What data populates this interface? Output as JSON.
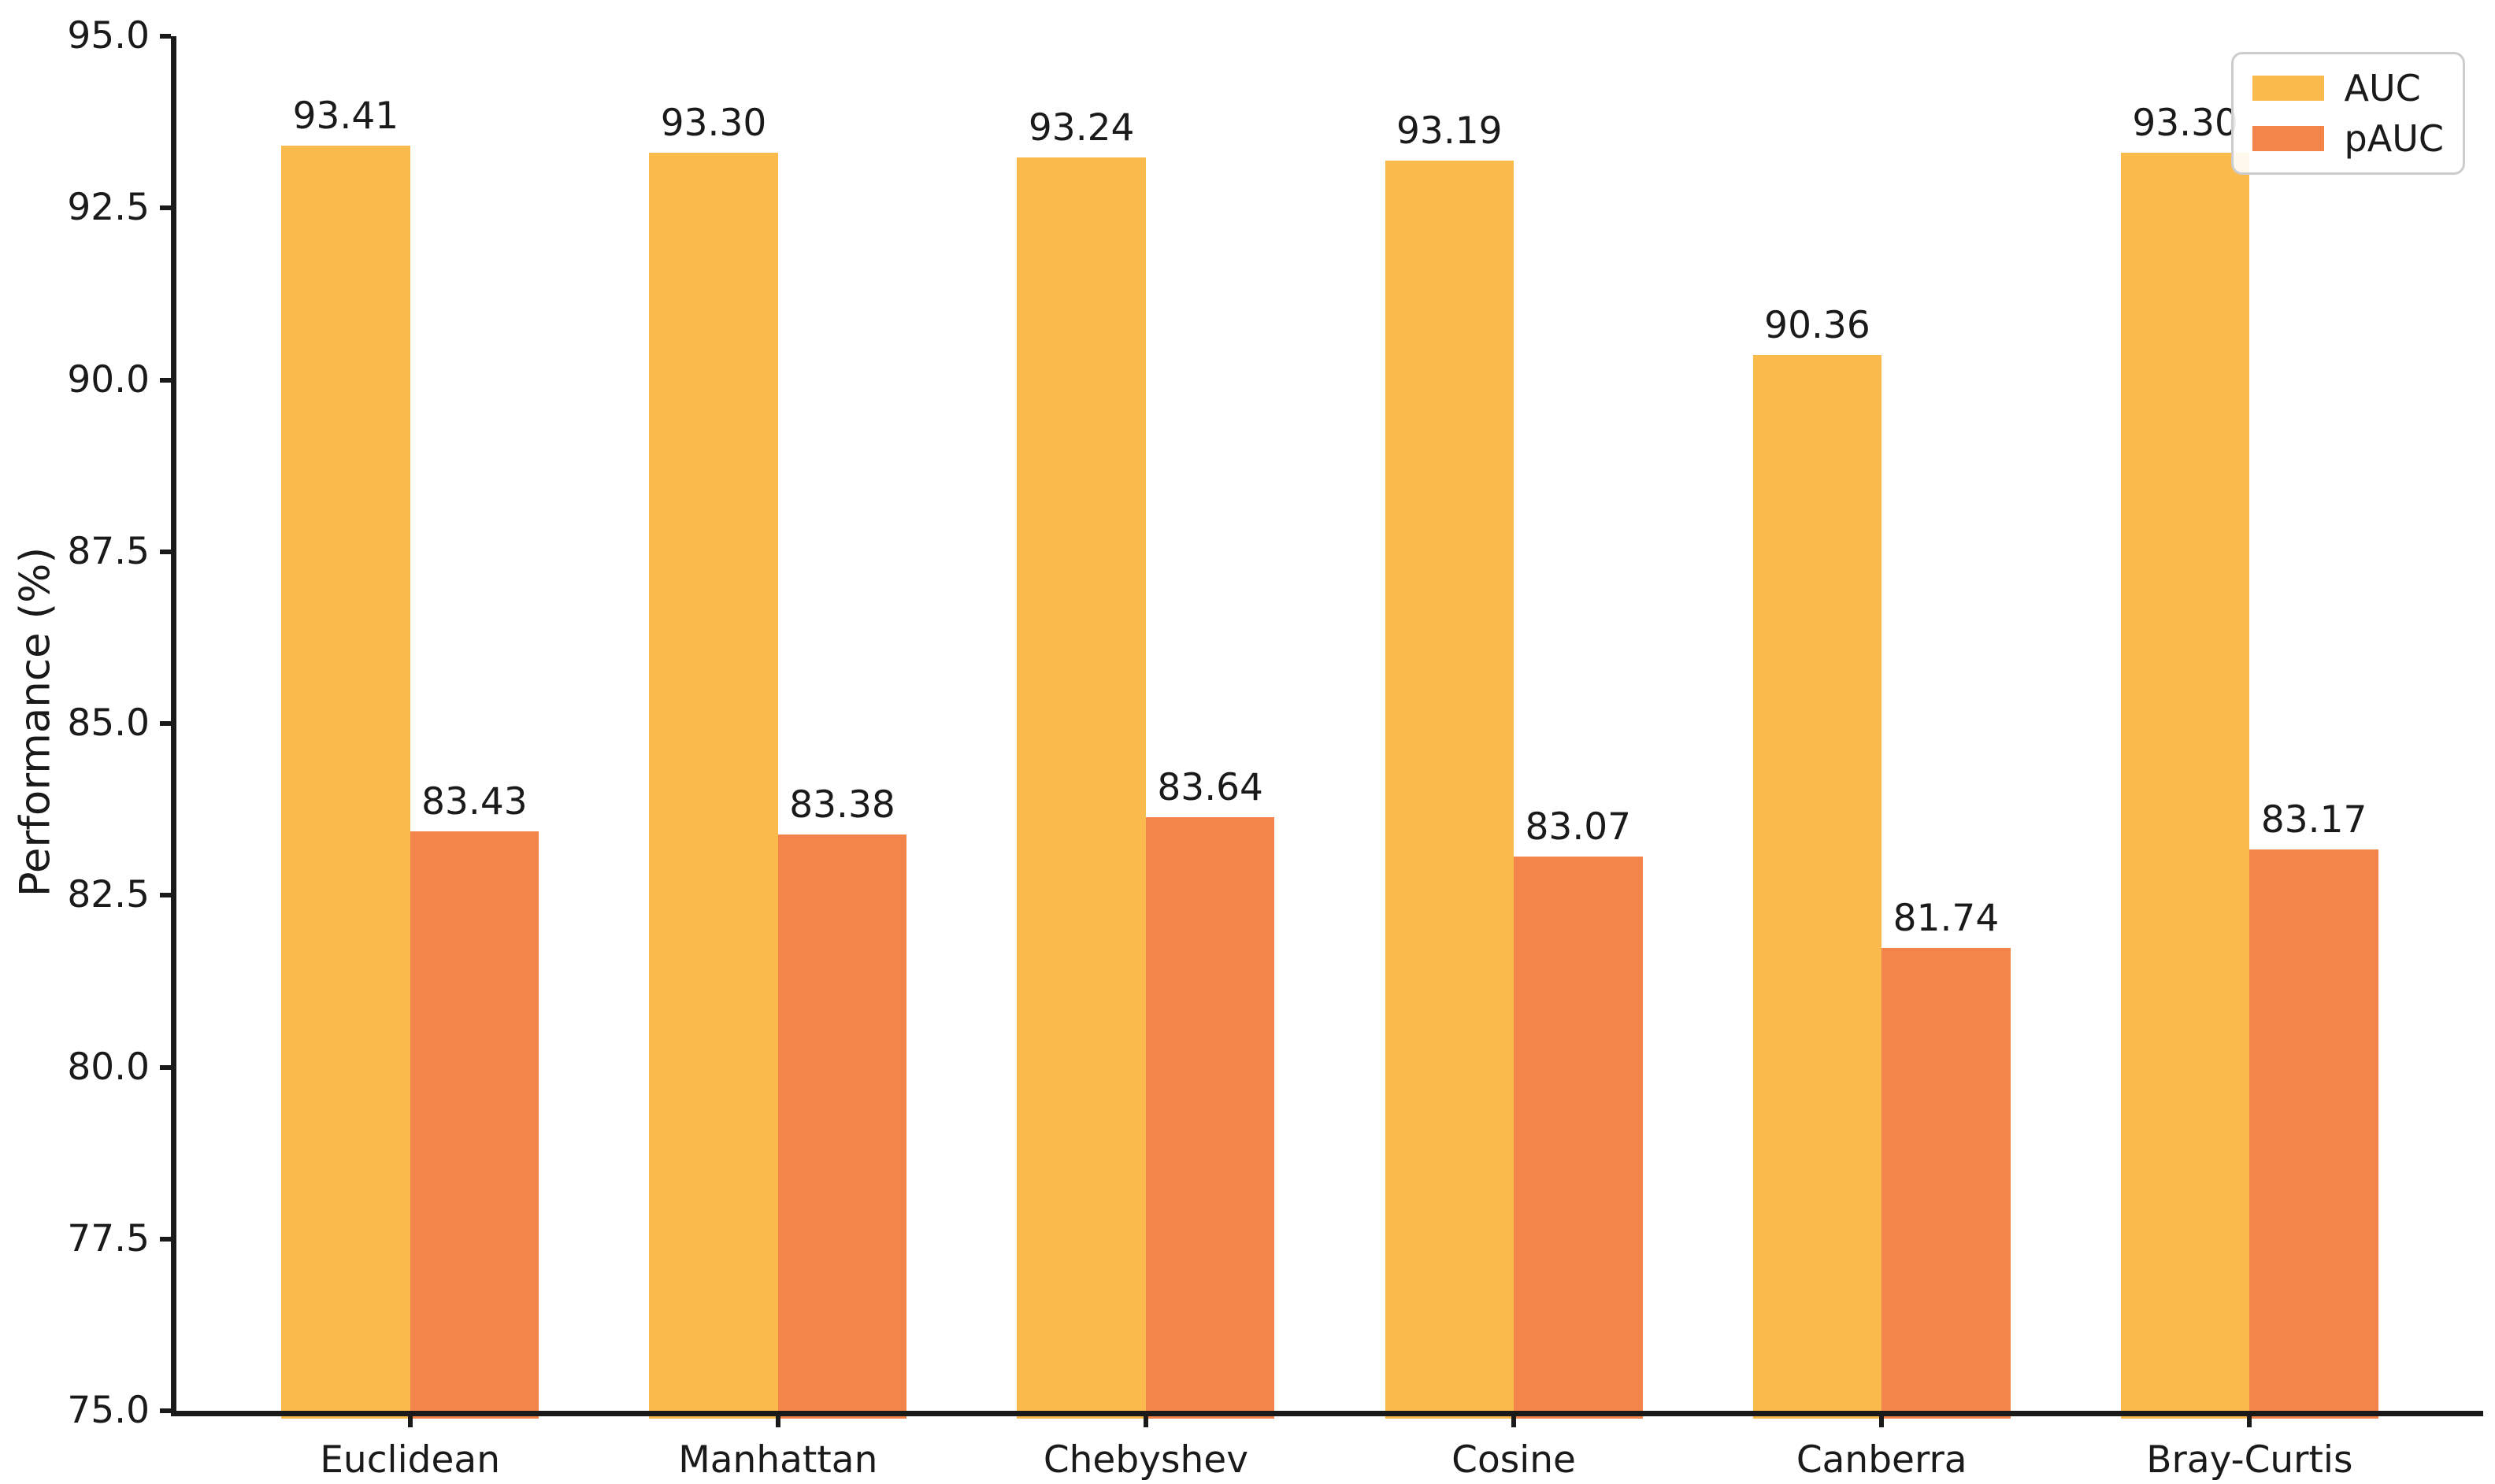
{
  "chart_data": {
    "type": "bar",
    "categories": [
      "Euclidean",
      "Manhattan",
      "Chebyshev",
      "Cosine",
      "Canberra",
      "Bray-Curtis"
    ],
    "series": [
      {
        "name": "AUC",
        "color": "#FBBB4C",
        "values": [
          93.41,
          93.3,
          93.24,
          93.19,
          90.36,
          93.3
        ]
      },
      {
        "name": "pAUC",
        "color": "#F4854A",
        "values": [
          83.43,
          83.38,
          83.64,
          83.07,
          81.74,
          83.17
        ]
      }
    ],
    "title": "",
    "xlabel": "",
    "ylabel": "Performance (%)",
    "ylim": [
      75.0,
      95.0
    ],
    "yticks": [
      75.0,
      77.5,
      80.0,
      82.5,
      85.0,
      87.5,
      90.0,
      92.5,
      95.0
    ],
    "ytick_decimals": 1,
    "value_label_decimals": 2,
    "grid": false,
    "legend_position": "upper right",
    "bar_width_units": 0.35,
    "x_pad_units": 0.635,
    "axis_color": "#1a1a1a"
  }
}
